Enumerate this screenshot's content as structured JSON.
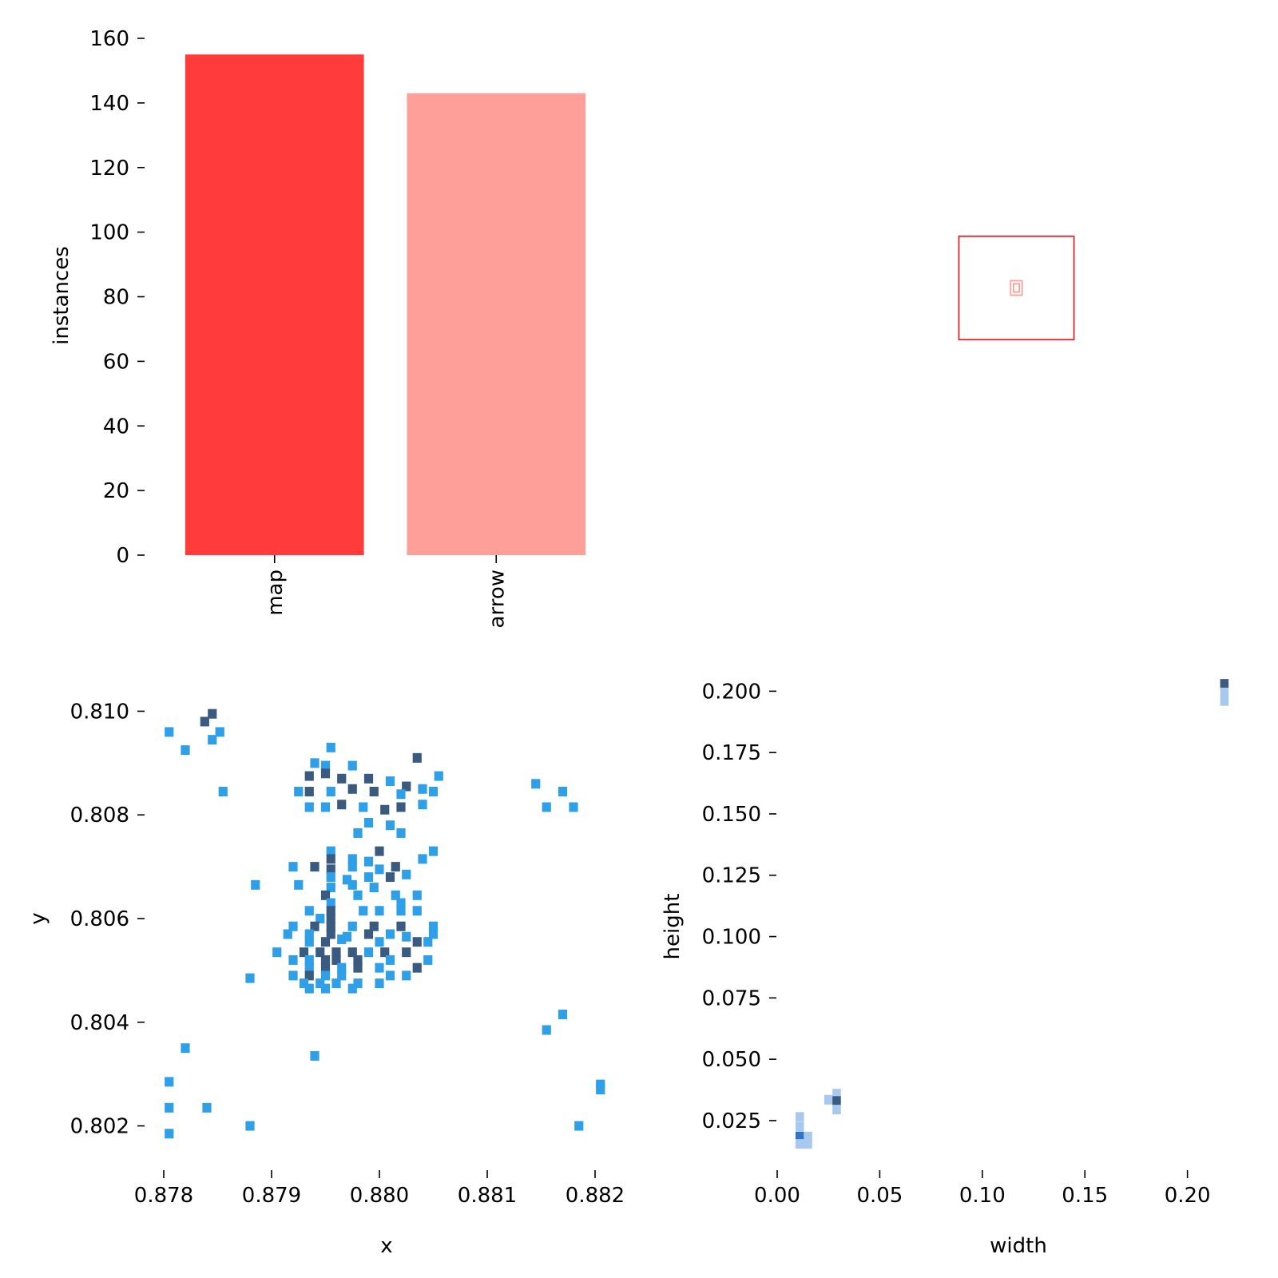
{
  "chart_data": [
    {
      "type": "bar",
      "categories": [
        "map",
        "arrow"
      ],
      "values": [
        155,
        143
      ],
      "colors": [
        "#ff3b3b",
        "#ff9f99"
      ],
      "xlabel": "",
      "ylabel": "instances",
      "yticks": [
        0,
        20,
        40,
        60,
        80,
        100,
        120,
        140,
        160
      ],
      "ylim": [
        0,
        160
      ],
      "grid": false
    },
    {
      "type": "boxes",
      "boxes": [
        {
          "cx": 0.5,
          "cy": 0.5,
          "w": 0.22,
          "h": 0.2,
          "color": "#e8242a"
        },
        {
          "cx": 0.5,
          "cy": 0.5,
          "w": 0.022,
          "h": 0.028,
          "color": "#ff9f99"
        },
        {
          "cx": 0.5,
          "cy": 0.5,
          "w": 0.011,
          "h": 0.016,
          "color": "#ff9f99"
        }
      ]
    },
    {
      "type": "heatmap",
      "xlabel": "x",
      "ylabel": "y",
      "xticks": [
        "0.878",
        "0.879",
        "0.880",
        "0.881",
        "0.882"
      ],
      "yticks": [
        "0.810",
        "0.808",
        "0.806",
        "0.804",
        "0.802"
      ],
      "xlim": [
        0.878,
        0.882
      ],
      "ylim": [
        0.8015,
        0.8105
      ],
      "colors": {
        "light": "#2f9fe8",
        "dark": "#3a5a80"
      },
      "cells": [
        [
          0.87805,
          0.8096,
          1
        ],
        [
          0.8782,
          0.80925,
          1
        ],
        [
          0.87838,
          0.8098,
          2
        ],
        [
          0.87845,
          0.80995,
          2
        ],
        [
          0.87845,
          0.80945,
          1
        ],
        [
          0.87852,
          0.8096,
          1
        ],
        [
          0.87855,
          0.80845,
          1
        ],
        [
          0.87955,
          0.8093,
          1
        ],
        [
          0.8794,
          0.809,
          1
        ],
        [
          0.8795,
          0.80895,
          1
        ],
        [
          0.87975,
          0.80895,
          1
        ],
        [
          0.88035,
          0.8091,
          2
        ],
        [
          0.88055,
          0.80875,
          1
        ],
        [
          0.87935,
          0.80875,
          2
        ],
        [
          0.8795,
          0.8088,
          2
        ],
        [
          0.87965,
          0.8087,
          2
        ],
        [
          0.8799,
          0.8087,
          2
        ],
        [
          0.8801,
          0.80865,
          1
        ],
        [
          0.88025,
          0.80855,
          2
        ],
        [
          0.8804,
          0.8085,
          1
        ],
        [
          0.87935,
          0.80845,
          2
        ],
        [
          0.87955,
          0.80845,
          1
        ],
        [
          0.87975,
          0.8085,
          2
        ],
        [
          0.87995,
          0.80845,
          2
        ],
        [
          0.8802,
          0.8084,
          1
        ],
        [
          0.8805,
          0.80845,
          1
        ],
        [
          0.87925,
          0.80845,
          1
        ],
        [
          0.87935,
          0.80815,
          1
        ],
        [
          0.8795,
          0.80815,
          1
        ],
        [
          0.87965,
          0.8082,
          2
        ],
        [
          0.87985,
          0.80815,
          1
        ],
        [
          0.88005,
          0.8081,
          2
        ],
        [
          0.8802,
          0.80815,
          2
        ],
        [
          0.8804,
          0.8082,
          1
        ],
        [
          0.8799,
          0.80785,
          1
        ],
        [
          0.8801,
          0.8078,
          1
        ],
        [
          0.8798,
          0.80765,
          1
        ],
        [
          0.8802,
          0.80765,
          1
        ],
        [
          0.88145,
          0.8086,
          1
        ],
        [
          0.8817,
          0.80845,
          1
        ],
        [
          0.88155,
          0.80815,
          1
        ],
        [
          0.8818,
          0.80815,
          1
        ],
        [
          0.87955,
          0.8073,
          1
        ],
        [
          0.88,
          0.8073,
          2
        ],
        [
          0.8805,
          0.8073,
          1
        ],
        [
          0.8804,
          0.80715,
          1
        ],
        [
          0.87955,
          0.80715,
          2
        ],
        [
          0.87975,
          0.80715,
          1
        ],
        [
          0.8799,
          0.8071,
          1
        ],
        [
          0.8792,
          0.807,
          1
        ],
        [
          0.8794,
          0.807,
          2
        ],
        [
          0.87955,
          0.80695,
          2
        ],
        [
          0.87975,
          0.807,
          1
        ],
        [
          0.88,
          0.80695,
          1
        ],
        [
          0.88015,
          0.807,
          2
        ],
        [
          0.88025,
          0.80685,
          1
        ],
        [
          0.87955,
          0.8068,
          1
        ],
        [
          0.8797,
          0.80675,
          1
        ],
        [
          0.8799,
          0.8068,
          1
        ],
        [
          0.8801,
          0.8068,
          2
        ],
        [
          0.87885,
          0.80665,
          1
        ],
        [
          0.87925,
          0.80665,
          1
        ],
        [
          0.87955,
          0.8066,
          1
        ],
        [
          0.87975,
          0.80665,
          1
        ],
        [
          0.87995,
          0.8066,
          1
        ],
        [
          0.8795,
          0.80645,
          2
        ],
        [
          0.8798,
          0.80645,
          1
        ],
        [
          0.88015,
          0.80645,
          1
        ],
        [
          0.88035,
          0.80645,
          1
        ],
        [
          0.87955,
          0.8063,
          1
        ],
        [
          0.8802,
          0.8063,
          1
        ],
        [
          0.87935,
          0.80615,
          1
        ],
        [
          0.87955,
          0.80615,
          2
        ],
        [
          0.87985,
          0.80615,
          1
        ],
        [
          0.88,
          0.80615,
          1
        ],
        [
          0.8802,
          0.80615,
          1
        ],
        [
          0.88035,
          0.80615,
          1
        ],
        [
          0.87945,
          0.806,
          1
        ],
        [
          0.87955,
          0.806,
          2
        ],
        [
          0.8792,
          0.80585,
          1
        ],
        [
          0.8794,
          0.80585,
          2
        ],
        [
          0.87955,
          0.80585,
          2
        ],
        [
          0.87975,
          0.80585,
          1
        ],
        [
          0.87995,
          0.80585,
          2
        ],
        [
          0.8802,
          0.80585,
          2
        ],
        [
          0.8805,
          0.80585,
          1
        ],
        [
          0.87915,
          0.8057,
          1
        ],
        [
          0.87935,
          0.8057,
          1
        ],
        [
          0.87955,
          0.8057,
          2
        ],
        [
          0.8797,
          0.80565,
          1
        ],
        [
          0.8799,
          0.8057,
          2
        ],
        [
          0.8801,
          0.8057,
          1
        ],
        [
          0.88025,
          0.80565,
          1
        ],
        [
          0.8805,
          0.8057,
          1
        ],
        [
          0.87935,
          0.80555,
          1
        ],
        [
          0.8795,
          0.80555,
          2
        ],
        [
          0.87965,
          0.8056,
          1
        ],
        [
          0.88,
          0.80555,
          1
        ],
        [
          0.88035,
          0.80555,
          2
        ],
        [
          0.88045,
          0.80555,
          1
        ],
        [
          0.87905,
          0.80535,
          1
        ],
        [
          0.8793,
          0.80535,
          2
        ],
        [
          0.87945,
          0.80535,
          2
        ],
        [
          0.8796,
          0.80535,
          2
        ],
        [
          0.87975,
          0.80535,
          2
        ],
        [
          0.8799,
          0.80535,
          1
        ],
        [
          0.88005,
          0.80535,
          2
        ],
        [
          0.88025,
          0.80535,
          2
        ],
        [
          0.8792,
          0.8052,
          1
        ],
        [
          0.87935,
          0.8052,
          1
        ],
        [
          0.8795,
          0.8052,
          2
        ],
        [
          0.8796,
          0.8052,
          2
        ],
        [
          0.8798,
          0.8052,
          2
        ],
        [
          0.8801,
          0.8052,
          1
        ],
        [
          0.88045,
          0.8052,
          1
        ],
        [
          0.87935,
          0.80505,
          1
        ],
        [
          0.8795,
          0.80505,
          2
        ],
        [
          0.87965,
          0.80505,
          1
        ],
        [
          0.8798,
          0.80505,
          2
        ],
        [
          0.88,
          0.80505,
          1
        ],
        [
          0.88035,
          0.80505,
          2
        ],
        [
          0.8792,
          0.8049,
          1
        ],
        [
          0.87935,
          0.8049,
          2
        ],
        [
          0.8795,
          0.8049,
          1
        ],
        [
          0.87965,
          0.8049,
          1
        ],
        [
          0.8801,
          0.8049,
          1
        ],
        [
          0.88025,
          0.8049,
          1
        ],
        [
          0.8793,
          0.80475,
          1
        ],
        [
          0.87945,
          0.80475,
          1
        ],
        [
          0.8796,
          0.80475,
          1
        ],
        [
          0.8798,
          0.80475,
          1
        ],
        [
          0.88,
          0.80475,
          1
        ],
        [
          0.8788,
          0.80485,
          1
        ],
        [
          0.87935,
          0.80465,
          1
        ],
        [
          0.8795,
          0.80465,
          1
        ],
        [
          0.87975,
          0.80465,
          1
        ],
        [
          0.8817,
          0.80415,
          1
        ],
        [
          0.88155,
          0.80385,
          1
        ],
        [
          0.8782,
          0.8035,
          1
        ],
        [
          0.8794,
          0.80335,
          1
        ],
        [
          0.87805,
          0.80285,
          1
        ],
        [
          0.88205,
          0.8028,
          1
        ],
        [
          0.88205,
          0.8027,
          1
        ],
        [
          0.87805,
          0.80235,
          1
        ],
        [
          0.8784,
          0.80235,
          1
        ],
        [
          0.8788,
          0.802,
          1
        ],
        [
          0.88185,
          0.802,
          1
        ],
        [
          0.87805,
          0.80185,
          1
        ]
      ]
    },
    {
      "type": "heatmap",
      "xlabel": "width",
      "ylabel": "height",
      "xticks": [
        "0.00",
        "0.05",
        "0.10",
        "0.15",
        "0.20"
      ],
      "yticks": [
        "0.025",
        "0.050",
        "0.075",
        "0.100",
        "0.125",
        "0.150",
        "0.175",
        "0.200"
      ],
      "xlim": [
        0.0,
        0.22
      ],
      "ylim": [
        0.01,
        0.205
      ],
      "colors": {
        "low": "#a9c8ee",
        "mid": "#2b77c6",
        "high": "#3a5a80"
      },
      "cells": [
        [
          0.011,
          0.0265,
          0
        ],
        [
          0.011,
          0.0225,
          0
        ],
        [
          0.011,
          0.0185,
          1
        ],
        [
          0.015,
          0.0185,
          0
        ],
        [
          0.011,
          0.0155,
          0
        ],
        [
          0.015,
          0.0155,
          0
        ],
        [
          0.025,
          0.0335,
          0
        ],
        [
          0.029,
          0.036,
          0
        ],
        [
          0.029,
          0.033,
          2
        ],
        [
          0.029,
          0.0295,
          0
        ],
        [
          0.218,
          0.203,
          2
        ],
        [
          0.218,
          0.1995,
          0
        ],
        [
          0.218,
          0.196,
          0
        ]
      ]
    }
  ]
}
